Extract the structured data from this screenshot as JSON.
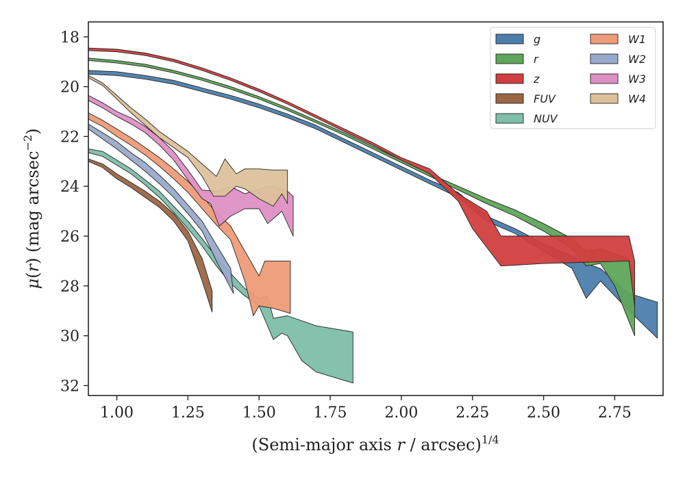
{
  "chart_data": {
    "type": "area",
    "xlabel": "(Semi-major axis r / arcsec)^1/4",
    "ylabel": "μ(r) (mag arcsec^-2)",
    "xlim": [
      0.9,
      2.92
    ],
    "ylim": [
      32.4,
      17.4
    ],
    "y_inverted": true,
    "grid": false,
    "legend": {
      "placement": "top-right",
      "columns": 2
    },
    "x_ticks": [
      "1.00",
      "1.25",
      "1.50",
      "1.75",
      "2.00",
      "2.25",
      "2.50",
      "2.75"
    ],
    "y_ticks": [
      "18",
      "20",
      "22",
      "24",
      "26",
      "28",
      "30",
      "32"
    ],
    "series": [
      {
        "name": "g",
        "color": "#4c7eac",
        "upper": [
          [
            0.9,
            19.35
          ],
          [
            1.0,
            19.4
          ],
          [
            1.1,
            19.55
          ],
          [
            1.2,
            19.75
          ],
          [
            1.3,
            20.05
          ],
          [
            1.4,
            20.35
          ],
          [
            1.5,
            20.7
          ],
          [
            1.6,
            21.1
          ],
          [
            1.7,
            21.55
          ],
          [
            1.8,
            22.1
          ],
          [
            1.9,
            22.65
          ],
          [
            2.0,
            23.2
          ],
          [
            2.1,
            23.75
          ],
          [
            2.2,
            24.25
          ],
          [
            2.3,
            25.2
          ],
          [
            2.4,
            25.7
          ],
          [
            2.5,
            26.3
          ],
          [
            2.6,
            26.8
          ],
          [
            2.65,
            27.1
          ],
          [
            2.7,
            27.3
          ],
          [
            2.8,
            28.3
          ],
          [
            2.9,
            28.65
          ]
        ],
        "lower": [
          [
            0.9,
            19.5
          ],
          [
            1.0,
            19.55
          ],
          [
            1.1,
            19.7
          ],
          [
            1.2,
            19.9
          ],
          [
            1.3,
            20.2
          ],
          [
            1.4,
            20.5
          ],
          [
            1.5,
            20.85
          ],
          [
            1.6,
            21.25
          ],
          [
            1.7,
            21.7
          ],
          [
            1.8,
            22.25
          ],
          [
            1.9,
            22.8
          ],
          [
            2.0,
            23.35
          ],
          [
            2.1,
            23.9
          ],
          [
            2.2,
            24.45
          ],
          [
            2.3,
            25.4
          ],
          [
            2.4,
            25.9
          ],
          [
            2.5,
            26.6
          ],
          [
            2.6,
            27.3
          ],
          [
            2.65,
            28.5
          ],
          [
            2.7,
            27.8
          ],
          [
            2.8,
            29.0
          ],
          [
            2.9,
            30.1
          ]
        ]
      },
      {
        "name": "r",
        "color": "#5fa55a",
        "upper": [
          [
            0.9,
            18.85
          ],
          [
            1.0,
            18.95
          ],
          [
            1.1,
            19.1
          ],
          [
            1.2,
            19.35
          ],
          [
            1.3,
            19.65
          ],
          [
            1.4,
            20.0
          ],
          [
            1.5,
            20.4
          ],
          [
            1.6,
            20.85
          ],
          [
            1.7,
            21.35
          ],
          [
            1.8,
            21.85
          ],
          [
            1.9,
            22.4
          ],
          [
            2.0,
            22.95
          ],
          [
            2.1,
            23.5
          ],
          [
            2.2,
            24.0
          ],
          [
            2.3,
            24.5
          ],
          [
            2.4,
            24.95
          ],
          [
            2.5,
            25.5
          ],
          [
            2.6,
            26.1
          ],
          [
            2.65,
            26.6
          ],
          [
            2.7,
            26.5
          ],
          [
            2.8,
            26.9
          ],
          [
            2.82,
            28.1
          ]
        ],
        "lower": [
          [
            0.9,
            18.95
          ],
          [
            1.0,
            19.05
          ],
          [
            1.1,
            19.2
          ],
          [
            1.2,
            19.45
          ],
          [
            1.3,
            19.75
          ],
          [
            1.4,
            20.1
          ],
          [
            1.5,
            20.5
          ],
          [
            1.6,
            20.95
          ],
          [
            1.7,
            21.45
          ],
          [
            1.8,
            21.95
          ],
          [
            1.9,
            22.5
          ],
          [
            2.0,
            23.05
          ],
          [
            2.1,
            23.6
          ],
          [
            2.2,
            24.15
          ],
          [
            2.3,
            24.7
          ],
          [
            2.4,
            25.2
          ],
          [
            2.5,
            25.8
          ],
          [
            2.6,
            26.5
          ],
          [
            2.65,
            27.2
          ],
          [
            2.7,
            27.1
          ],
          [
            2.75,
            28.0
          ],
          [
            2.82,
            30.0
          ]
        ]
      },
      {
        "name": "z",
        "color": "#d13e3e",
        "upper": [
          [
            0.9,
            18.45
          ],
          [
            1.0,
            18.5
          ],
          [
            1.1,
            18.65
          ],
          [
            1.2,
            18.9
          ],
          [
            1.3,
            19.25
          ],
          [
            1.4,
            19.65
          ],
          [
            1.5,
            20.1
          ],
          [
            1.6,
            20.6
          ],
          [
            1.7,
            21.15
          ],
          [
            1.8,
            21.7
          ],
          [
            1.9,
            22.25
          ],
          [
            2.0,
            22.85
          ],
          [
            2.1,
            23.3
          ],
          [
            2.2,
            24.3
          ],
          [
            2.3,
            25.0
          ],
          [
            2.35,
            26.0
          ],
          [
            2.5,
            26.0
          ],
          [
            2.8,
            26.0
          ],
          [
            2.82,
            27.0
          ]
        ],
        "lower": [
          [
            0.9,
            18.55
          ],
          [
            1.0,
            18.6
          ],
          [
            1.1,
            18.75
          ],
          [
            1.2,
            19.0
          ],
          [
            1.3,
            19.35
          ],
          [
            1.4,
            19.75
          ],
          [
            1.5,
            20.2
          ],
          [
            1.6,
            20.7
          ],
          [
            1.7,
            21.25
          ],
          [
            1.8,
            21.8
          ],
          [
            1.9,
            22.35
          ],
          [
            2.0,
            22.95
          ],
          [
            2.1,
            23.5
          ],
          [
            2.2,
            24.6
          ],
          [
            2.25,
            25.7
          ],
          [
            2.35,
            27.2
          ],
          [
            2.5,
            27.1
          ],
          [
            2.8,
            27.0
          ],
          [
            2.82,
            28.8
          ]
        ]
      },
      {
        "name": "FUV",
        "color": "#9c6644",
        "upper": [
          [
            0.9,
            22.9
          ],
          [
            0.95,
            23.1
          ],
          [
            1.0,
            23.5
          ],
          [
            1.05,
            23.85
          ],
          [
            1.1,
            24.2
          ],
          [
            1.15,
            24.6
          ],
          [
            1.2,
            25.1
          ],
          [
            1.25,
            25.8
          ],
          [
            1.3,
            26.9
          ],
          [
            1.335,
            28.2
          ]
        ],
        "lower": [
          [
            0.9,
            23.0
          ],
          [
            0.95,
            23.25
          ],
          [
            1.0,
            23.7
          ],
          [
            1.05,
            24.05
          ],
          [
            1.1,
            24.45
          ],
          [
            1.15,
            24.85
          ],
          [
            1.2,
            25.4
          ],
          [
            1.25,
            26.2
          ],
          [
            1.3,
            27.8
          ],
          [
            1.335,
            29.05
          ]
        ]
      },
      {
        "name": "NUV",
        "color": "#7dbfaa",
        "upper": [
          [
            0.9,
            22.5
          ],
          [
            0.95,
            22.6
          ],
          [
            1.0,
            22.95
          ],
          [
            1.05,
            23.3
          ],
          [
            1.1,
            23.75
          ],
          [
            1.15,
            24.2
          ],
          [
            1.2,
            24.8
          ],
          [
            1.25,
            25.4
          ],
          [
            1.3,
            26.1
          ],
          [
            1.35,
            26.85
          ],
          [
            1.4,
            27.5
          ],
          [
            1.45,
            28.1
          ],
          [
            1.5,
            28.5
          ],
          [
            1.53,
            28.4
          ],
          [
            1.55,
            29.3
          ],
          [
            1.6,
            29.2
          ],
          [
            1.7,
            29.6
          ],
          [
            1.83,
            29.85
          ]
        ],
        "lower": [
          [
            0.9,
            22.65
          ],
          [
            0.95,
            22.8
          ],
          [
            1.0,
            23.15
          ],
          [
            1.05,
            23.5
          ],
          [
            1.1,
            23.95
          ],
          [
            1.15,
            24.45
          ],
          [
            1.2,
            25.05
          ],
          [
            1.25,
            25.7
          ],
          [
            1.3,
            26.4
          ],
          [
            1.35,
            27.2
          ],
          [
            1.4,
            27.9
          ],
          [
            1.45,
            28.4
          ],
          [
            1.5,
            28.8
          ],
          [
            1.55,
            30.15
          ],
          [
            1.58,
            29.9
          ],
          [
            1.6,
            30.0
          ],
          [
            1.65,
            31.0
          ],
          [
            1.7,
            31.45
          ],
          [
            1.83,
            31.9
          ]
        ]
      },
      {
        "name": "W1",
        "color": "#ee9b78",
        "upper": [
          [
            0.9,
            21.05
          ],
          [
            0.95,
            21.35
          ],
          [
            1.0,
            21.7
          ],
          [
            1.05,
            22.05
          ],
          [
            1.1,
            22.45
          ],
          [
            1.15,
            22.85
          ],
          [
            1.2,
            23.3
          ],
          [
            1.25,
            23.8
          ],
          [
            1.3,
            24.4
          ],
          [
            1.35,
            25.05
          ],
          [
            1.4,
            25.6
          ],
          [
            1.45,
            26.6
          ],
          [
            1.5,
            27.6
          ],
          [
            1.52,
            27.0
          ],
          [
            1.55,
            27.0
          ],
          [
            1.6,
            27.0
          ],
          [
            1.61,
            27.0
          ]
        ],
        "lower": [
          [
            0.9,
            21.3
          ],
          [
            0.95,
            21.6
          ],
          [
            1.0,
            22.0
          ],
          [
            1.05,
            22.35
          ],
          [
            1.1,
            22.75
          ],
          [
            1.15,
            23.2
          ],
          [
            1.2,
            23.7
          ],
          [
            1.25,
            24.25
          ],
          [
            1.3,
            24.9
          ],
          [
            1.35,
            25.55
          ],
          [
            1.4,
            26.15
          ],
          [
            1.45,
            27.8
          ],
          [
            1.48,
            29.2
          ],
          [
            1.5,
            28.8
          ],
          [
            1.55,
            28.9
          ],
          [
            1.61,
            29.1
          ]
        ]
      },
      {
        "name": "W2",
        "color": "#9aaaca",
        "upper": [
          [
            0.9,
            21.5
          ],
          [
            0.95,
            21.85
          ],
          [
            1.0,
            22.2
          ],
          [
            1.05,
            22.65
          ],
          [
            1.1,
            23.05
          ],
          [
            1.15,
            23.55
          ],
          [
            1.2,
            24.1
          ],
          [
            1.25,
            24.75
          ],
          [
            1.3,
            25.4
          ],
          [
            1.35,
            26.35
          ],
          [
            1.4,
            27.3
          ]
        ],
        "lower": [
          [
            0.9,
            21.7
          ],
          [
            0.95,
            22.1
          ],
          [
            1.0,
            22.5
          ],
          [
            1.05,
            22.95
          ],
          [
            1.1,
            23.4
          ],
          [
            1.15,
            23.9
          ],
          [
            1.2,
            24.45
          ],
          [
            1.25,
            25.1
          ],
          [
            1.3,
            25.8
          ],
          [
            1.35,
            27.0
          ],
          [
            1.41,
            28.3
          ]
        ]
      },
      {
        "name": "W3",
        "color": "#dd90c4",
        "upper": [
          [
            0.9,
            20.35
          ],
          [
            0.95,
            20.65
          ],
          [
            1.0,
            21.0
          ],
          [
            1.05,
            21.25
          ],
          [
            1.1,
            21.6
          ],
          [
            1.15,
            22.05
          ],
          [
            1.2,
            22.6
          ],
          [
            1.25,
            23.35
          ],
          [
            1.3,
            24.15
          ],
          [
            1.35,
            24.2
          ],
          [
            1.4,
            24.0
          ],
          [
            1.45,
            24.3
          ],
          [
            1.5,
            24.1
          ],
          [
            1.55,
            24.0
          ],
          [
            1.6,
            24.2
          ],
          [
            1.62,
            24.4
          ]
        ],
        "lower": [
          [
            0.9,
            20.55
          ],
          [
            0.95,
            20.85
          ],
          [
            1.0,
            21.2
          ],
          [
            1.05,
            21.5
          ],
          [
            1.1,
            21.85
          ],
          [
            1.15,
            22.35
          ],
          [
            1.2,
            22.95
          ],
          [
            1.25,
            23.75
          ],
          [
            1.3,
            24.5
          ],
          [
            1.33,
            24.7
          ],
          [
            1.36,
            25.6
          ],
          [
            1.4,
            25.2
          ],
          [
            1.45,
            24.9
          ],
          [
            1.5,
            24.9
          ],
          [
            1.53,
            25.5
          ],
          [
            1.58,
            25.0
          ],
          [
            1.62,
            26.0
          ]
        ]
      },
      {
        "name": "W4",
        "color": "#dcc19b",
        "upper": [
          [
            0.9,
            19.55
          ],
          [
            0.95,
            19.85
          ],
          [
            1.0,
            20.35
          ],
          [
            1.05,
            20.85
          ],
          [
            1.1,
            21.3
          ],
          [
            1.15,
            21.8
          ],
          [
            1.2,
            22.2
          ],
          [
            1.25,
            22.6
          ],
          [
            1.3,
            23.1
          ],
          [
            1.35,
            23.6
          ],
          [
            1.38,
            22.9
          ],
          [
            1.42,
            23.5
          ],
          [
            1.45,
            23.3
          ],
          [
            1.5,
            23.3
          ],
          [
            1.55,
            23.35
          ],
          [
            1.6,
            23.35
          ]
        ],
        "lower": [
          [
            0.9,
            19.65
          ],
          [
            0.95,
            19.95
          ],
          [
            1.0,
            20.5
          ],
          [
            1.05,
            21.05
          ],
          [
            1.1,
            21.55
          ],
          [
            1.15,
            22.05
          ],
          [
            1.2,
            22.45
          ],
          [
            1.25,
            22.85
          ],
          [
            1.3,
            23.6
          ],
          [
            1.34,
            24.4
          ],
          [
            1.38,
            24.4
          ],
          [
            1.42,
            24.0
          ],
          [
            1.45,
            24.1
          ],
          [
            1.5,
            24.5
          ],
          [
            1.55,
            24.8
          ],
          [
            1.58,
            24.3
          ],
          [
            1.6,
            24.7
          ]
        ]
      }
    ]
  }
}
